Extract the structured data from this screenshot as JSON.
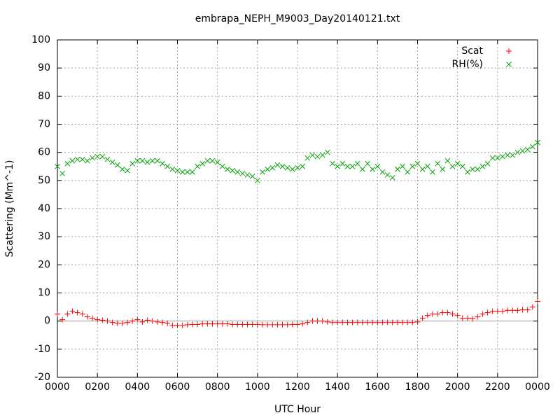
{
  "chart_data": {
    "type": "scatter",
    "title": "embrapa_NEPH_M9003_Day20140121.txt",
    "x_label": "UTC Hour",
    "y_label": "Scattering (Mm^-1)",
    "x": [
      0,
      0.25,
      0.5,
      0.75,
      1,
      1.25,
      1.5,
      1.75,
      2,
      2.25,
      2.5,
      2.75,
      3,
      3.25,
      3.5,
      3.75,
      4,
      4.25,
      4.5,
      4.75,
      5,
      5.25,
      5.5,
      5.75,
      6,
      6.25,
      6.5,
      6.75,
      7,
      7.25,
      7.5,
      7.75,
      8,
      8.25,
      8.5,
      8.75,
      9,
      9.25,
      9.5,
      9.75,
      10,
      10.25,
      10.5,
      10.75,
      11,
      11.25,
      11.5,
      11.75,
      12,
      12.25,
      12.5,
      12.75,
      13,
      13.25,
      13.5,
      13.75,
      14,
      14.25,
      14.5,
      14.75,
      15,
      15.25,
      15.5,
      15.75,
      16,
      16.25,
      16.5,
      16.75,
      17,
      17.25,
      17.5,
      17.75,
      18,
      18.25,
      18.5,
      18.75,
      19,
      19.25,
      19.5,
      19.75,
      20,
      20.25,
      20.5,
      20.75,
      21,
      21.25,
      21.5,
      21.75,
      22,
      22.25,
      22.5,
      22.75,
      23,
      23.25,
      23.5,
      23.75,
      24
    ],
    "series": [
      {
        "name": "Scat",
        "color": "#ff0000",
        "marker": "+",
        "values": [
          2.5,
          0.5,
          2.5,
          3.5,
          3,
          2.5,
          1.5,
          1,
          0.5,
          0.3,
          0,
          -0.5,
          -0.8,
          -0.8,
          -0.5,
          0,
          0.5,
          -0.3,
          0.3,
          0,
          -0.3,
          -0.5,
          -0.8,
          -1.5,
          -1.5,
          -1.5,
          -1.3,
          -1.2,
          -1.2,
          -1,
          -1,
          -1,
          -1,
          -1,
          -1,
          -1.2,
          -1.2,
          -1.2,
          -1.2,
          -1.2,
          -1.2,
          -1.3,
          -1.3,
          -1.3,
          -1.3,
          -1.3,
          -1.3,
          -1.2,
          -1.2,
          -1,
          -0.5,
          0,
          0,
          0,
          -0.3,
          -0.5,
          -0.5,
          -0.5,
          -0.5,
          -0.5,
          -0.5,
          -0.5,
          -0.5,
          -0.5,
          -0.5,
          -0.5,
          -0.5,
          -0.5,
          -0.5,
          -0.5,
          -0.5,
          -0.5,
          -0.3,
          1,
          2,
          2.5,
          2.5,
          3,
          3,
          2.5,
          2,
          1,
          1,
          0.8,
          1.5,
          2.5,
          3,
          3.5,
          3.5,
          3.5,
          3.8,
          3.8,
          3.8,
          4,
          4,
          5,
          7
        ]
      },
      {
        "name": "RH(%)",
        "color": "#00a000",
        "marker": "x",
        "values": [
          55,
          52.5,
          56,
          57,
          57.5,
          57.5,
          57,
          58,
          58.5,
          58.5,
          57.5,
          56.5,
          55.5,
          54,
          53.5,
          56,
          57,
          57,
          56.5,
          57,
          57,
          56,
          55,
          54,
          53.5,
          53,
          53,
          53,
          55,
          56,
          57,
          57,
          56.5,
          55,
          54,
          53.5,
          53,
          52.5,
          52,
          51.5,
          50,
          53,
          54,
          54.5,
          55.5,
          55,
          54.5,
          54,
          54.5,
          55,
          58,
          59,
          58.5,
          59,
          60,
          56,
          55,
          56,
          55,
          55,
          56,
          54,
          56,
          54,
          55,
          53,
          52,
          51,
          54,
          55,
          53,
          55,
          56,
          54,
          55,
          53,
          56,
          54,
          57,
          55,
          56,
          55,
          53,
          54,
          54,
          55,
          56,
          58,
          58,
          58.5,
          59,
          59,
          60,
          60.5,
          61,
          62,
          63.5
        ]
      }
    ],
    "xlim": [
      0,
      24
    ],
    "xticks": [
      {
        "value": 0,
        "label": "0000"
      },
      {
        "value": 2,
        "label": "0200"
      },
      {
        "value": 4,
        "label": "0400"
      },
      {
        "value": 6,
        "label": "0600"
      },
      {
        "value": 8,
        "label": "0800"
      },
      {
        "value": 10,
        "label": "1000"
      },
      {
        "value": 12,
        "label": "1200"
      },
      {
        "value": 14,
        "label": "1400"
      },
      {
        "value": 16,
        "label": "1600"
      },
      {
        "value": 18,
        "label": "1800"
      },
      {
        "value": 20,
        "label": "2000"
      },
      {
        "value": 22,
        "label": "2200"
      },
      {
        "value": 24,
        "label": "0000"
      }
    ],
    "ylim": [
      -20,
      100
    ],
    "yticks": [
      -20,
      -10,
      0,
      10,
      20,
      30,
      40,
      50,
      60,
      70,
      80,
      90,
      100
    ],
    "grid": true,
    "legend": "top-right"
  }
}
